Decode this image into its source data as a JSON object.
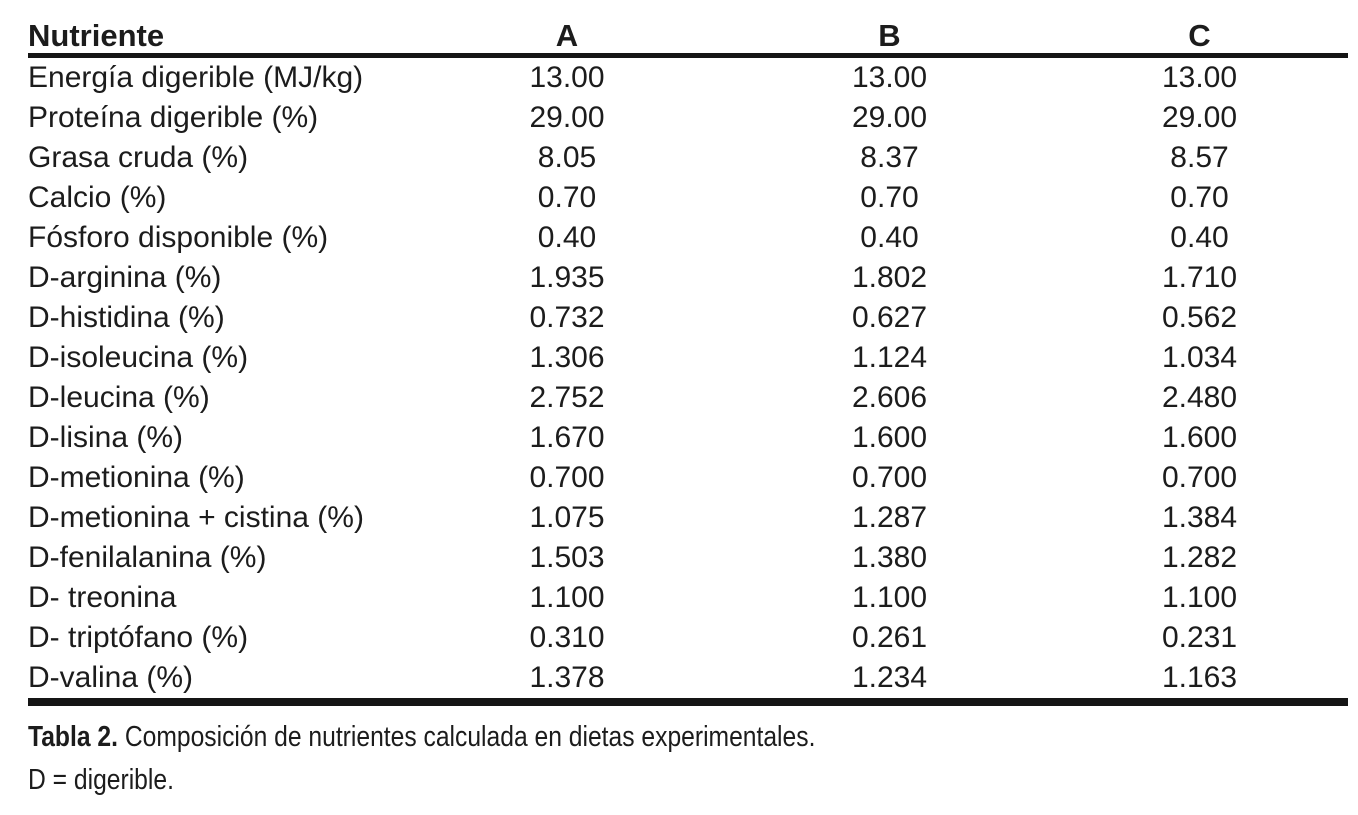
{
  "table": {
    "header": {
      "nutrient": "Nutriente",
      "columns": [
        "A",
        "B",
        "C"
      ]
    },
    "rows": [
      {
        "label": "Energía digerible (MJ/kg)",
        "a": "13.00",
        "b": "13.00",
        "c": "13.00"
      },
      {
        "label": "Proteína digerible (%)",
        "a": "29.00",
        "b": "29.00",
        "c": "29.00"
      },
      {
        "label": "Grasa cruda (%)",
        "a": "8.05",
        "b": "8.37",
        "c": "8.57"
      },
      {
        "label": "Calcio (%)",
        "a": "0.70",
        "b": "0.70",
        "c": "0.70"
      },
      {
        "label": "Fósforo disponible (%)",
        "a": "0.40",
        "b": "0.40",
        "c": "0.40"
      },
      {
        "label": "D-arginina (%)",
        "a": "1.935",
        "b": "1.802",
        "c": "1.710"
      },
      {
        "label": "D-histidina (%)",
        "a": "0.732",
        "b": "0.627",
        "c": "0.562"
      },
      {
        "label": "D-isoleucina (%)",
        "a": "1.306",
        "b": "1.124",
        "c": "1.034"
      },
      {
        "label": "D-leucina (%)",
        "a": "2.752",
        "b": "2.606",
        "c": "2.480"
      },
      {
        "label": "D-lisina (%)",
        "a": "1.670",
        "b": "1.600",
        "c": "1.600"
      },
      {
        "label": "D-metionina (%)",
        "a": "0.700",
        "b": "0.700",
        "c": "0.700"
      },
      {
        "label": "D-metionina + cistina (%)",
        "a": "1.075",
        "b": "1.287",
        "c": "1.384"
      },
      {
        "label": "D-fenilalanina (%)",
        "a": "1.503",
        "b": "1.380",
        "c": "1.282"
      },
      {
        "label": "D- treonina",
        "a": "1.100",
        "b": "1.100",
        "c": "1.100"
      },
      {
        "label": "D- triptófano (%)",
        "a": "0.310",
        "b": "0.261",
        "c": "0.231"
      },
      {
        "label": "D-valina (%)",
        "a": "1.378",
        "b": "1.234",
        "c": "1.163"
      }
    ]
  },
  "caption": {
    "label": "Tabla 2.",
    "text": " Composición de nutrientes calculada en dietas experimentales."
  },
  "footnote": "D = digerible.",
  "colors": {
    "text": "#1c1c1c",
    "rule": "#151515",
    "background": "#ffffff"
  }
}
